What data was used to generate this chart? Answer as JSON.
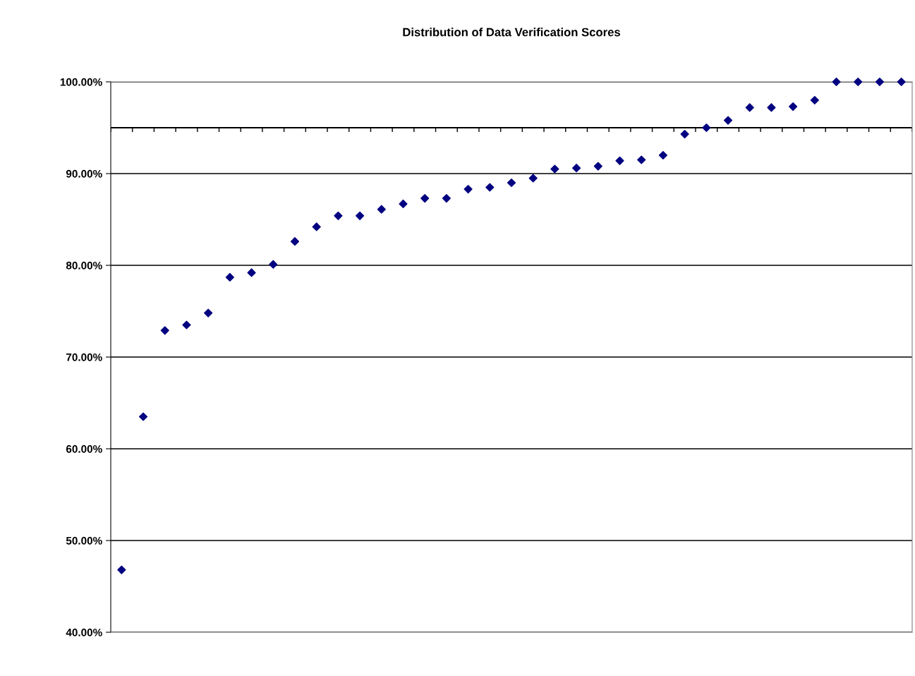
{
  "chart_data": {
    "type": "scatter",
    "title": "Distribution of Data Verification Scores",
    "categories": [
      null,
      null,
      null,
      null,
      null,
      null,
      null,
      null,
      null,
      null,
      null,
      null,
      null,
      null,
      null,
      null,
      null,
      null,
      null,
      null,
      null,
      null,
      null,
      null,
      null,
      null,
      null,
      null,
      null,
      null,
      null,
      null,
      null,
      null,
      null,
      null,
      null
    ],
    "series": [
      {
        "color": "#000080",
        "values": [
          46.8,
          63.5,
          72.9,
          73.5,
          74.8,
          78.7,
          79.2,
          80.1,
          82.6,
          84.2,
          85.4,
          85.4,
          86.1,
          86.7,
          87.3,
          87.3,
          88.3,
          88.5,
          89.0,
          89.5,
          90.5,
          90.6,
          90.8,
          91.4,
          91.5,
          92.0,
          94.3,
          95.0,
          95.8,
          97.2,
          97.2,
          97.3,
          98.0,
          100,
          100,
          100,
          100
        ]
      }
    ],
    "ylim": [
      40,
      100
    ],
    "yticks": [
      {
        "value": 40,
        "label": "40.00%"
      },
      {
        "value": 50,
        "label": "50.00%"
      },
      {
        "value": 60,
        "label": "60.00%"
      },
      {
        "value": 70,
        "label": "70.00%"
      },
      {
        "value": 80,
        "label": "80.00%"
      },
      {
        "value": 90,
        "label": "90.00%"
      },
      {
        "value": 100,
        "label": "100.00%"
      }
    ],
    "ref_lines": [
      {
        "axis": "y",
        "value": 95,
        "color": "#000000"
      }
    ],
    "grid": "y",
    "marker": "diamond",
    "tick_labels": "y"
  }
}
